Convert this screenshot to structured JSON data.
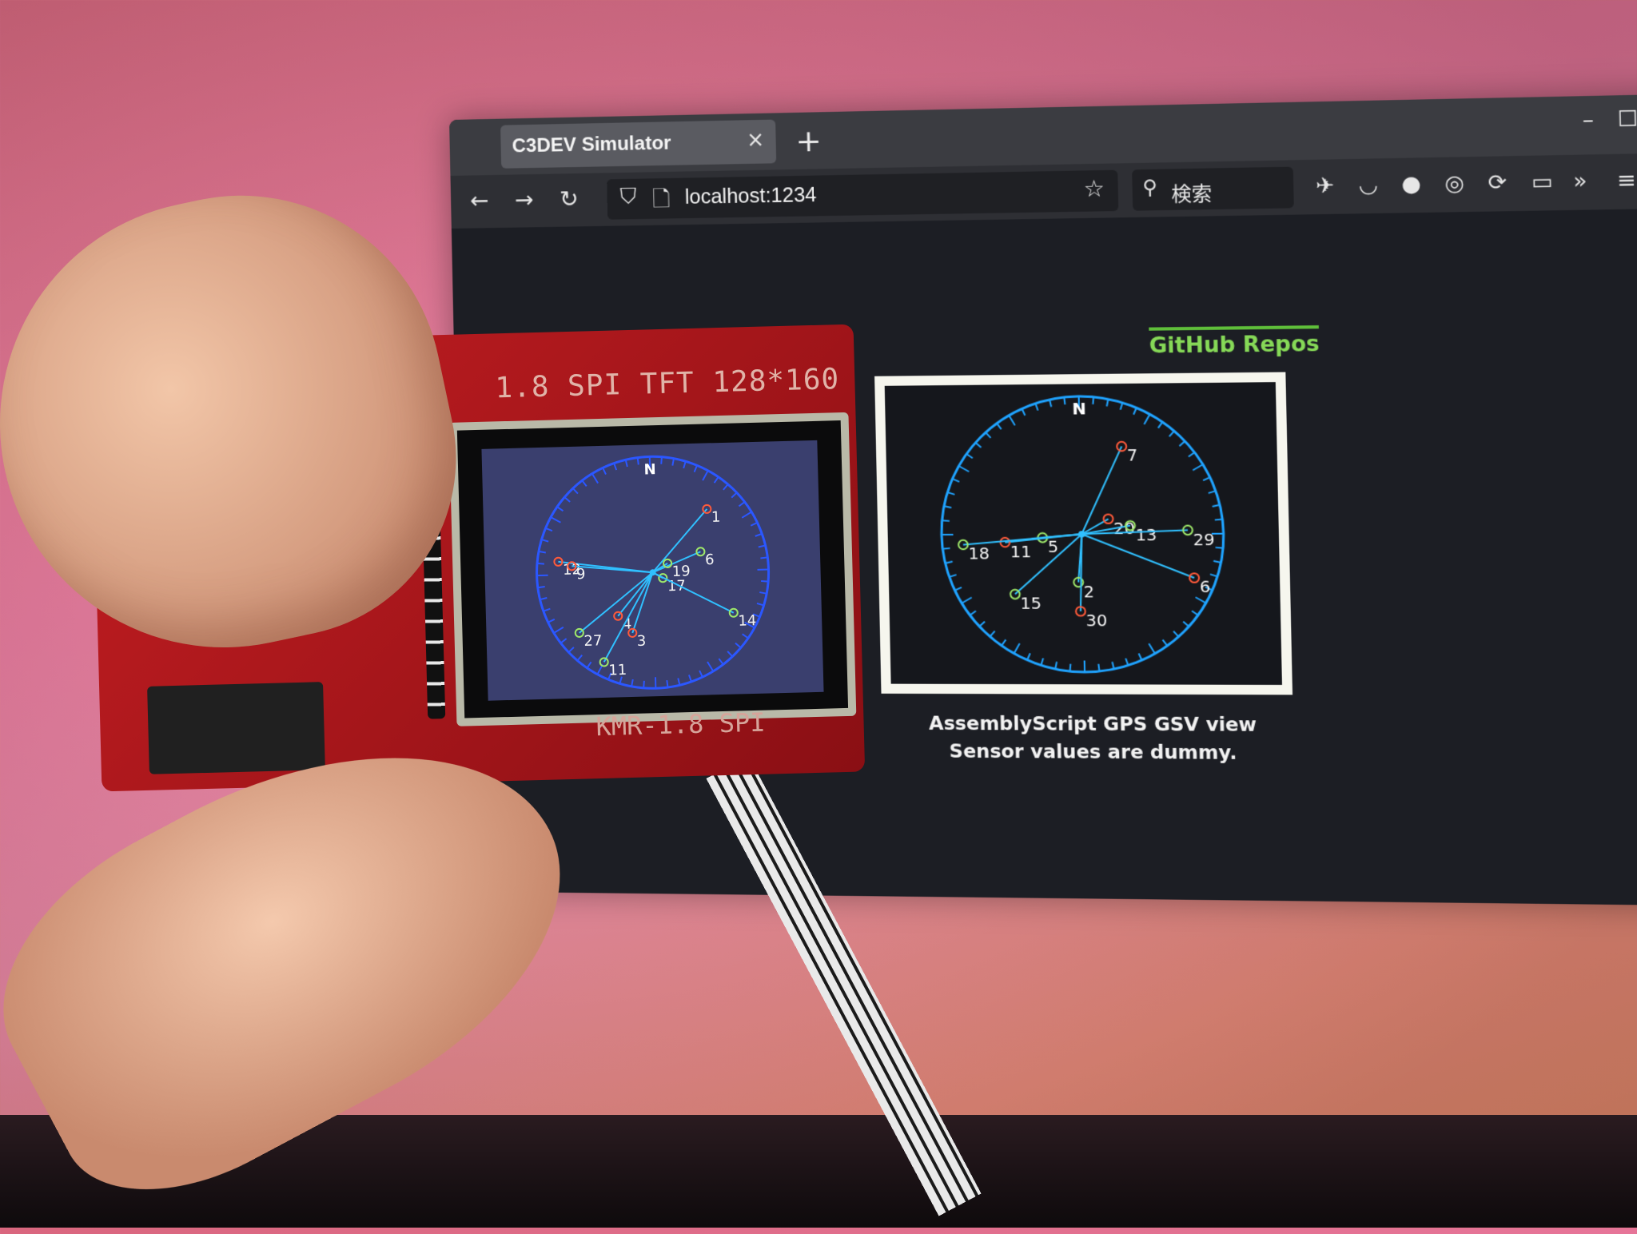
{
  "browser": {
    "tab_title": "C3DEV Simulator",
    "tab_close": "×",
    "new_tab": "+",
    "url": "localhost:1234",
    "search_placeholder": "検索",
    "window_controls": {
      "minimize": "–",
      "maximize": "☐",
      "close": "✕"
    },
    "nav_icons": [
      "back-icon",
      "forward-icon",
      "reload-icon"
    ],
    "toolbar_icons": [
      "extension-icon",
      "pocket-icon",
      "hat-icon",
      "target-icon",
      "sync-icon",
      "clipboard-icon",
      "overflow-icon",
      "menu-icon"
    ]
  },
  "page": {
    "github_link": "GitHub Repos",
    "caption_line1": "AssemblyScript GPS GSV view",
    "caption_line2": "Sensor values are dummy.",
    "accent_color": "#86d957"
  },
  "device": {
    "board_label": "1.8 SPI TFT  128*160",
    "bottom_label": "KMR-1.8 SPI"
  },
  "sim_view": {
    "north_label": "N",
    "satellites": [
      {
        "id": "7",
        "status": "red",
        "az": 25,
        "r": 0.7
      },
      {
        "id": "20",
        "status": "red",
        "az": 60,
        "r": 0.22
      },
      {
        "id": "13",
        "status": "green",
        "az": 80,
        "r": 0.35
      },
      {
        "id": "29",
        "status": "green",
        "az": 88,
        "r": 0.75
      },
      {
        "id": "6",
        "status": "red",
        "az": 112,
        "r": 0.85
      },
      {
        "id": "2",
        "status": "green",
        "az": 185,
        "r": 0.35
      },
      {
        "id": "30",
        "status": "red",
        "az": 182,
        "r": 0.56
      },
      {
        "id": "15",
        "status": "green",
        "az": 228,
        "r": 0.65
      },
      {
        "id": "5",
        "status": "green",
        "az": 265,
        "r": 0.28
      },
      {
        "id": "11",
        "status": "red",
        "az": 264,
        "r": 0.55
      },
      {
        "id": "18",
        "status": "green",
        "az": 265,
        "r": 0.85
      }
    ]
  },
  "tft_view": {
    "north_label": "N",
    "satellites": [
      {
        "id": "1",
        "status": "red",
        "az": 42,
        "r": 0.72
      },
      {
        "id": "6",
        "status": "green",
        "az": 68,
        "r": 0.45
      },
      {
        "id": "19",
        "status": "green",
        "az": 60,
        "r": 0.15
      },
      {
        "id": "17",
        "status": "green",
        "az": 120,
        "r": 0.1
      },
      {
        "id": "14",
        "status": "green",
        "az": 118,
        "r": 0.78
      },
      {
        "id": "12",
        "status": "red",
        "az": 278,
        "r": 0.82
      },
      {
        "id": "9",
        "status": "red",
        "az": 276,
        "r": 0.7
      },
      {
        "id": "4",
        "status": "red",
        "az": 220,
        "r": 0.48
      },
      {
        "id": "3",
        "status": "red",
        "az": 200,
        "r": 0.55
      },
      {
        "id": "27",
        "status": "green",
        "az": 232,
        "r": 0.82
      },
      {
        "id": "11",
        "status": "green",
        "az": 210,
        "r": 0.88
      }
    ]
  },
  "colors": {
    "dial": "#1fa3ff",
    "dial_tft": "#2b57ff",
    "line": "#30c0ff",
    "sat_red": "#ff5a3a",
    "sat_green": "#9ee86a",
    "label": "#f4f4f4"
  }
}
